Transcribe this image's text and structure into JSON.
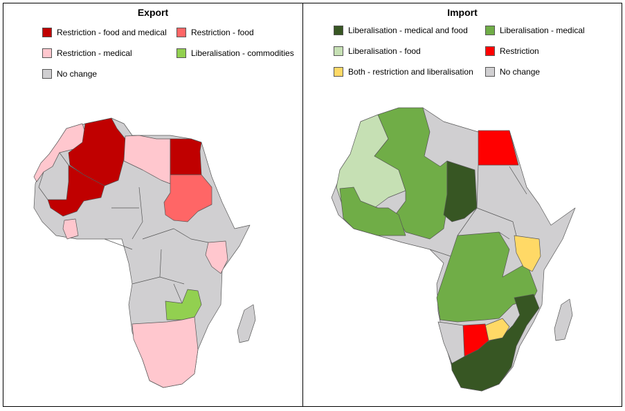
{
  "export": {
    "title": "Export",
    "legend": [
      {
        "label": "Restriction - food and medical",
        "color": "#c00000"
      },
      {
        "label": "Restriction - food",
        "color": "#ff6666"
      },
      {
        "label": "Restriction - medical",
        "color": "#ffc7ce"
      },
      {
        "label": "Liberalisation - commodities",
        "color": "#92d050"
      },
      {
        "label": "No change",
        "color": "#d0cfd1"
      }
    ]
  },
  "import": {
    "title": "Import",
    "legend": [
      {
        "label": "Liberalisation - medical and food",
        "color": "#375623"
      },
      {
        "label": "Liberalisation - medical",
        "color": "#70ad47"
      },
      {
        "label": "Liberalisation - food",
        "color": "#c6e0b4"
      },
      {
        "label": "Restriction",
        "color": "#ff0000"
      },
      {
        "label": "Both - restriction and liberalisation",
        "color": "#ffd966"
      },
      {
        "label": "No change",
        "color": "#d0cfd1"
      }
    ]
  }
}
